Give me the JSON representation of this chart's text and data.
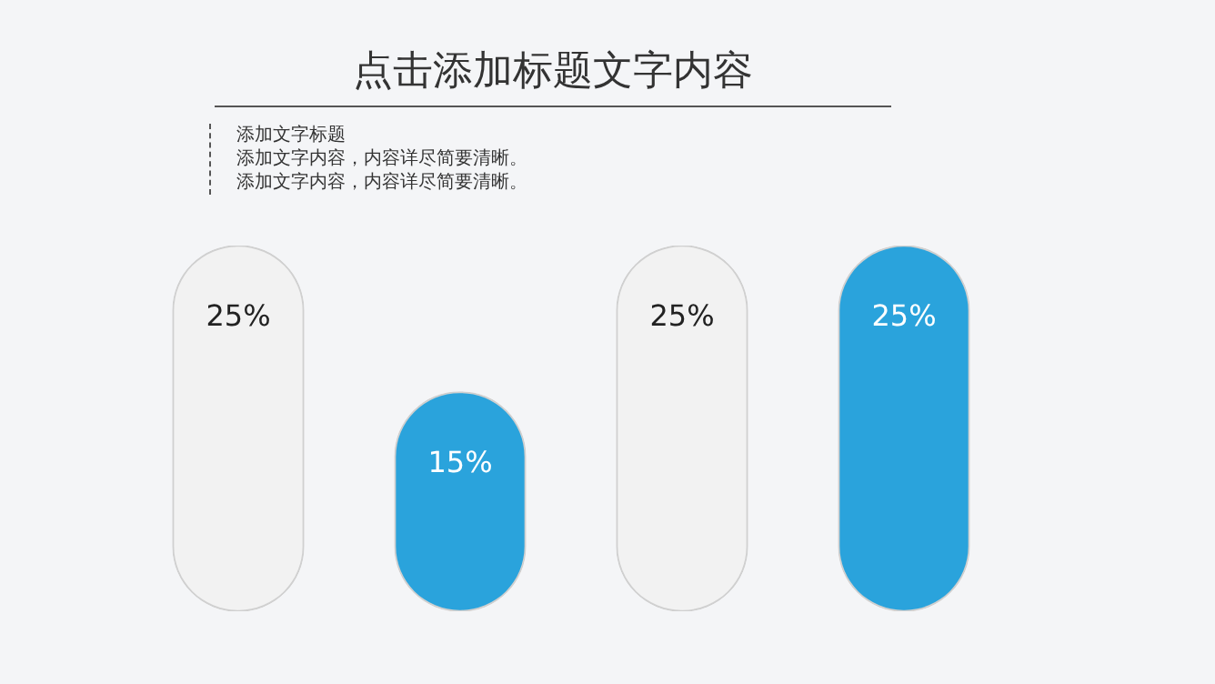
{
  "chart_data": {
    "type": "bar",
    "title": "点击添加标题文字内容",
    "annotations": [
      "添加文字标题",
      "添加文字内容，内容详尽简要清晰。",
      "添加文字内容，内容详尽简要清晰。"
    ],
    "categories": [
      null,
      null,
      null,
      null
    ],
    "values": [
      25,
      15,
      25,
      25
    ],
    "value_labels": [
      "25%",
      "15%",
      "25%",
      "25%"
    ],
    "colors": [
      "#f2f2f2",
      "#2aa3dc",
      "#f2f2f2",
      "#2aa3dc"
    ]
  }
}
